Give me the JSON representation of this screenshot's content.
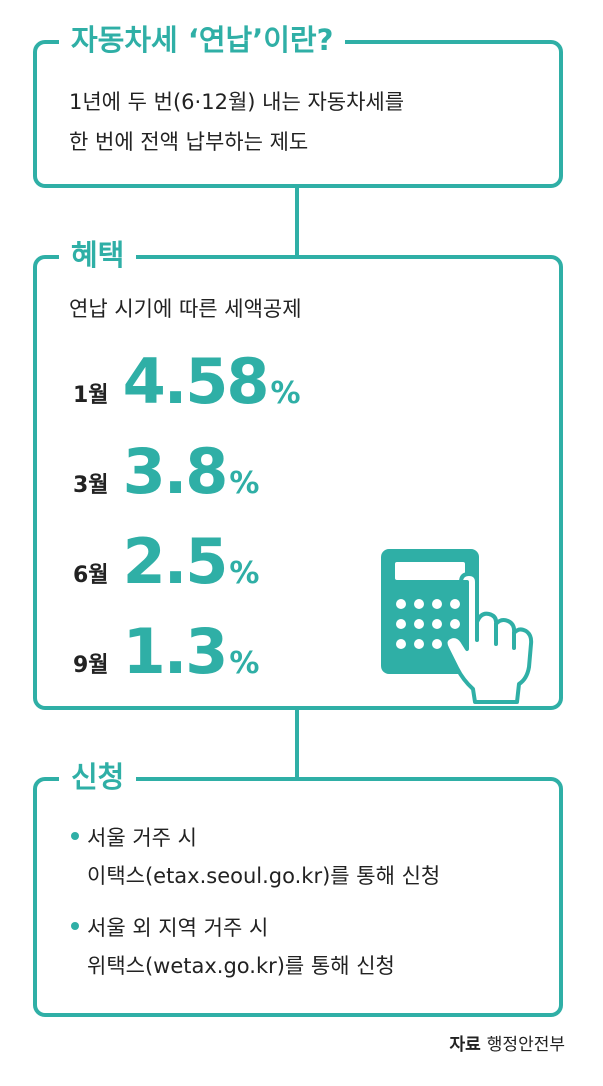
{
  "definition": {
    "title": "자동차세 ‘연납’이란?",
    "line1": "1년에 두 번(6·12월) 내는 자동차세를",
    "line2": "한 번에 전액 납부하는 제도"
  },
  "benefit": {
    "title": "혜택",
    "subtitle": "연납 시기에 따른 세액공제",
    "rates": [
      {
        "month": "1월",
        "value": "4.58",
        "unit": "%"
      },
      {
        "month": "3월",
        "value": "3.8",
        "unit": "%"
      },
      {
        "month": "6월",
        "value": "2.5",
        "unit": "%"
      },
      {
        "month": "9월",
        "value": "1.3",
        "unit": "%"
      }
    ],
    "icon": "calculator-with-pointing-hand-icon"
  },
  "apply": {
    "title": "신청",
    "items": [
      {
        "line1": "서울 거주 시",
        "line2": "이택스(etax.seoul.go.kr)를 통해 신청"
      },
      {
        "line1": "서울 외 지역 거주 시",
        "line2": "위택스(wetax.go.kr)를 통해 신청"
      }
    ]
  },
  "source": {
    "label": "자료",
    "value": "행정안전부"
  },
  "colors": {
    "accent": "#2fafa6",
    "text": "#222222"
  }
}
